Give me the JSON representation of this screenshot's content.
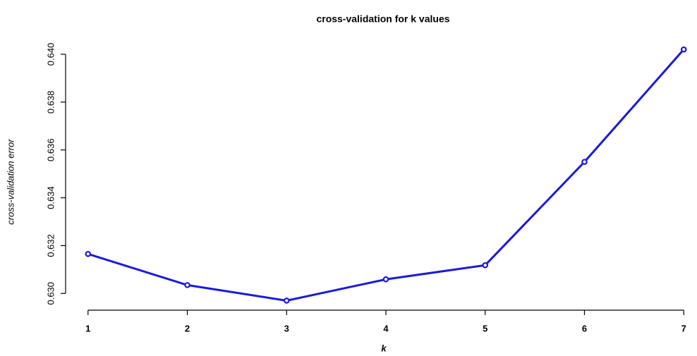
{
  "chart_data": {
    "type": "line",
    "title": "cross-validation for k values",
    "x_label": "k",
    "y_label": "cross-validation error",
    "x": [
      1,
      2,
      3,
      4,
      5,
      6,
      7
    ],
    "values": [
      0.63165,
      0.63035,
      0.6297,
      0.63059,
      0.63118,
      0.6355,
      0.6402
    ],
    "color": "#1a1adb",
    "xlim": [
      0.76,
      7.24
    ],
    "xticks": [
      1,
      2,
      3,
      4,
      5,
      6,
      7
    ],
    "ylim": [
      0.6293,
      0.6405
    ],
    "yticks": [
      {
        "value": 0.63,
        "label": "0.630"
      },
      0.632,
      0.634,
      0.636,
      0.638,
      {
        "value": 0.64,
        "label": "0.640"
      }
    ],
    "grid": false
  }
}
